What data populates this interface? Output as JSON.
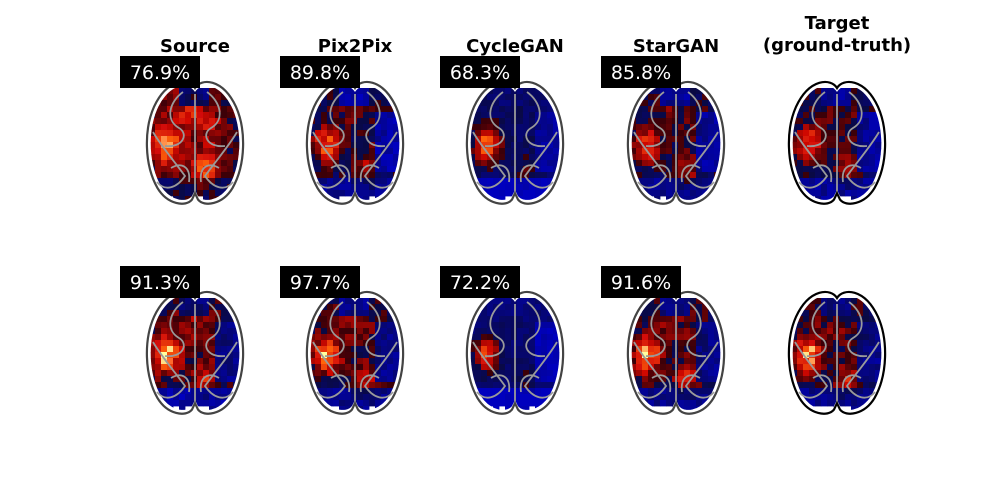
{
  "columns": [
    {
      "title_lines": [
        "Source"
      ]
    },
    {
      "title_lines": [
        "Pix2Pix"
      ]
    },
    {
      "title_lines": [
        "CycleGAN"
      ]
    },
    {
      "title_lines": [
        "StarGAN"
      ]
    },
    {
      "title_lines": [
        "Target",
        "(ground-truth)"
      ]
    }
  ],
  "rows": [
    {
      "scores": [
        "76.9%",
        "89.8%",
        "68.3%",
        "85.8%",
        null
      ]
    },
    {
      "scores": [
        "91.3%",
        "97.7%",
        "72.2%",
        "91.6%",
        null
      ]
    }
  ],
  "colors": {
    "score_box": "#000000",
    "score_text": "#ffffff",
    "brain_outline": "#000000",
    "brain_overlay_outline": "#9a9a9a"
  }
}
